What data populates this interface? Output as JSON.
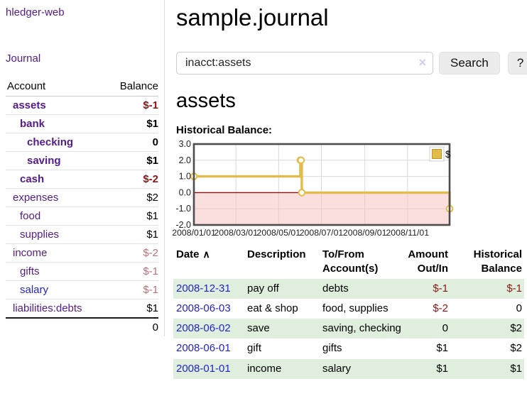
{
  "app": {
    "brand": "hledger-web",
    "nav_journal": "Journal"
  },
  "sidebar": {
    "header": {
      "account": "Account",
      "balance": "Balance"
    },
    "accounts": [
      {
        "name": "assets",
        "depth": 1,
        "balance": "$-1",
        "bold": true,
        "neg": "strong",
        "link": "purple"
      },
      {
        "name": "bank",
        "depth": 2,
        "balance": "$1",
        "bold": true,
        "neg": "none",
        "link": "purple"
      },
      {
        "name": "checking",
        "depth": 3,
        "balance": "0",
        "bold": true,
        "neg": "none",
        "link": "purple"
      },
      {
        "name": "saving",
        "depth": 3,
        "balance": "$1",
        "bold": true,
        "neg": "none",
        "link": "purple"
      },
      {
        "name": "cash",
        "depth": 2,
        "balance": "$-2",
        "bold": true,
        "neg": "strong",
        "link": "purple"
      },
      {
        "name": "expenses",
        "depth": 1,
        "balance": "$2",
        "bold": false,
        "neg": "none",
        "link": "purple"
      },
      {
        "name": "food",
        "depth": 2,
        "balance": "$1",
        "bold": false,
        "neg": "none",
        "link": "purple"
      },
      {
        "name": "supplies",
        "depth": 2,
        "balance": "$1",
        "bold": false,
        "neg": "none",
        "link": "purple"
      },
      {
        "name": "income",
        "depth": 1,
        "balance": "$-2",
        "bold": false,
        "neg": "soft",
        "link": "purple"
      },
      {
        "name": "gifts",
        "depth": 2,
        "balance": "$-1",
        "bold": false,
        "neg": "soft",
        "link": "purple"
      },
      {
        "name": "salary",
        "depth": 2,
        "balance": "$-1",
        "bold": false,
        "neg": "soft",
        "link": "blue"
      },
      {
        "name": "liabilities:debts",
        "depth": 1,
        "balance": "$1",
        "bold": false,
        "neg": "none",
        "link": "purple"
      }
    ],
    "total": "0"
  },
  "header": {
    "title": "sample.journal"
  },
  "search": {
    "value": "inacct:assets",
    "clear_icon": "×",
    "button_label": "Search",
    "help_label": "?"
  },
  "account_page": {
    "heading": "assets",
    "chart_label": "Historical Balance:"
  },
  "chart_data": {
    "type": "line",
    "step": true,
    "title": "Historical Balance:",
    "series": [
      {
        "name": "$",
        "points": [
          [
            "2008-01-01",
            1
          ],
          [
            "2008-06-01",
            2
          ],
          [
            "2008-06-02",
            2
          ],
          [
            "2008-06-03",
            0
          ],
          [
            "2008-12-31",
            -1
          ]
        ]
      }
    ],
    "x_range": [
      "2008-01-01",
      "2008-12-31"
    ],
    "ylim": [
      -2,
      3
    ],
    "yticks": [
      3.0,
      2.0,
      1.0,
      0.0,
      -1.0,
      -2.0
    ],
    "xticks": [
      "2008/01/01",
      "2008/03/01",
      "2008/05/01",
      "2008/07/01",
      "2008/09/01",
      "2008/11/01"
    ],
    "grid": true,
    "legend": {
      "label": "$",
      "position": "top-right"
    },
    "colors": {
      "line": "#e2bc49",
      "marker_fill": "#ffffff",
      "negative_region": "#f7c3c3",
      "zero_line": "#8b0f0f",
      "gridline": "#d9d9d9",
      "border": "#4d4d4d",
      "swatch_border": "#bb962f",
      "tick_text": "#222222"
    }
  },
  "register": {
    "columns": [
      {
        "label": "Date",
        "align": "left",
        "sort": "∧"
      },
      {
        "label": "Description",
        "align": "left"
      },
      {
        "label": "To/From Account(s)",
        "align": "left"
      },
      {
        "label": "Amount Out/In",
        "align": "right"
      },
      {
        "label": "Historical Balance",
        "align": "right"
      }
    ],
    "rows": [
      {
        "date": "2008-12-31",
        "description": "pay off",
        "accounts": "debts",
        "amount": "$-1",
        "amount_neg": true,
        "balance": "$-1",
        "balance_neg": true
      },
      {
        "date": "2008-06-03",
        "description": "eat & shop",
        "accounts": "food, supplies",
        "amount": "$-2",
        "amount_neg": true,
        "balance": "0",
        "balance_neg": false
      },
      {
        "date": "2008-06-02",
        "description": "save",
        "accounts": "saving, checking",
        "amount": "0",
        "amount_neg": false,
        "balance": "$2",
        "balance_neg": false
      },
      {
        "date": "2008-06-01",
        "description": "gift",
        "accounts": "gifts",
        "amount": "$1",
        "amount_neg": false,
        "balance": "$2",
        "balance_neg": false
      },
      {
        "date": "2008-01-01",
        "description": "income",
        "accounts": "salary",
        "amount": "$1",
        "amount_neg": false,
        "balance": "$1",
        "balance_neg": false
      }
    ]
  }
}
